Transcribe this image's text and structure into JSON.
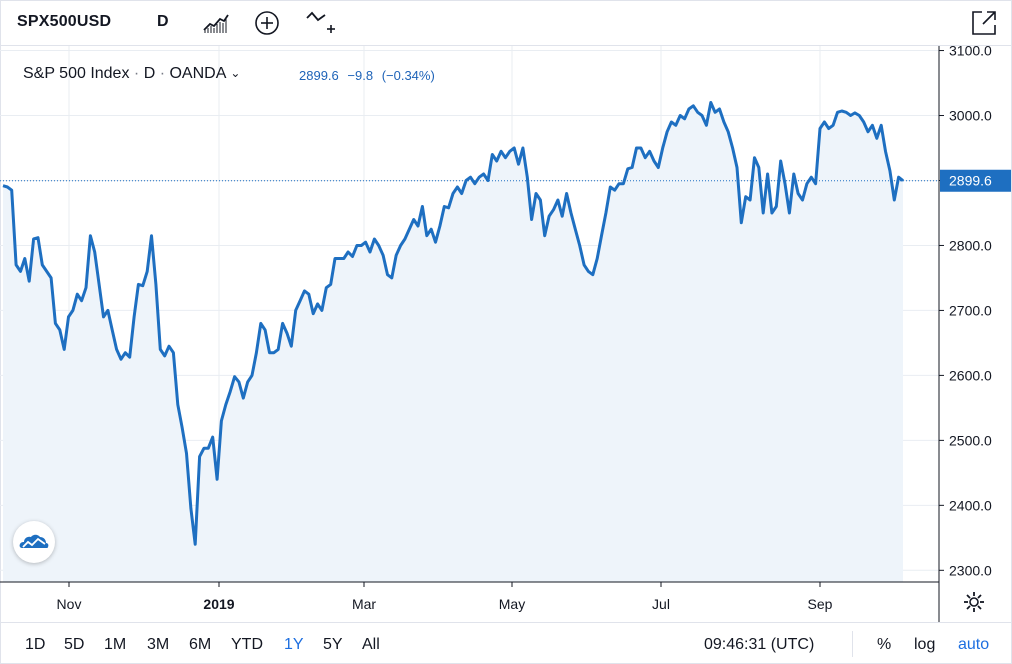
{
  "toolbar": {
    "symbol": "SPX500USD",
    "interval": "D",
    "icons": [
      "chart-style-icon",
      "compare-icon",
      "indicators-icon",
      "fullscreen-icon"
    ]
  },
  "legend": {
    "title": "S&P 500 Index",
    "sep": "·",
    "interval": "D",
    "source": "OANDA",
    "price": "2899.6",
    "change": "−9.8",
    "change_pct": "(−0.34%)"
  },
  "bottom": {
    "ranges": [
      "1D",
      "5D",
      "1M",
      "3M",
      "6M",
      "YTD",
      "1Y",
      "5Y",
      "All"
    ],
    "active_range": "1Y",
    "time": "09:46:31 (UTC)",
    "options": [
      "%",
      "log",
      "auto"
    ]
  },
  "colors": {
    "line": "#1e6fc1",
    "area": "#eef4fa",
    "grid": "#e9edf2",
    "price_label_bg": "#1e6fc1"
  },
  "chart_data": {
    "type": "area",
    "x_ticks": [
      "Nov",
      "2019",
      "Mar",
      "May",
      "Jul",
      "Sep"
    ],
    "y_ticks": [
      3100.0,
      3000.0,
      2900.0,
      2800.0,
      2700.0,
      2600.0,
      2500.0,
      2400.0,
      2300.0
    ],
    "ylim": [
      2282,
      3107
    ],
    "last_price": 2899.6,
    "last_price_label": "2899.6",
    "grid": true,
    "series": [
      {
        "values": [
          2892,
          2890,
          2885,
          2770,
          2760,
          2780,
          2745,
          2810,
          2812,
          2770,
          2760,
          2750,
          2680,
          2670,
          2640,
          2690,
          2700,
          2725,
          2715,
          2735,
          2815,
          2790,
          2740,
          2690,
          2700,
          2670,
          2640,
          2625,
          2635,
          2628,
          2690,
          2740,
          2738,
          2760,
          2815,
          2740,
          2640,
          2630,
          2645,
          2635,
          2555,
          2520,
          2480,
          2395,
          2340,
          2475,
          2488,
          2488,
          2505,
          2440,
          2530,
          2555,
          2575,
          2598,
          2590,
          2565,
          2590,
          2600,
          2635,
          2680,
          2670,
          2635,
          2635,
          2640,
          2680,
          2665,
          2645,
          2700,
          2715,
          2730,
          2725,
          2695,
          2710,
          2700,
          2735,
          2740,
          2780,
          2780,
          2780,
          2790,
          2783,
          2800,
          2800,
          2805,
          2790,
          2810,
          2800,
          2785,
          2755,
          2750,
          2785,
          2800,
          2810,
          2825,
          2840,
          2830,
          2860,
          2815,
          2825,
          2805,
          2830,
          2860,
          2858,
          2880,
          2890,
          2880,
          2900,
          2905,
          2895,
          2905,
          2910,
          2900,
          2940,
          2930,
          2945,
          2935,
          2945,
          2950,
          2925,
          2950,
          2905,
          2840,
          2880,
          2870,
          2815,
          2845,
          2855,
          2870,
          2845,
          2880,
          2850,
          2825,
          2800,
          2770,
          2760,
          2755,
          2780,
          2815,
          2850,
          2890,
          2885,
          2895,
          2895,
          2918,
          2920,
          2950,
          2950,
          2935,
          2945,
          2930,
          2920,
          2950,
          2975,
          2990,
          2985,
          3000,
          2995,
          3010,
          3015,
          3005,
          3000,
          2985,
          3020,
          3005,
          3010,
          2990,
          2975,
          2950,
          2920,
          2835,
          2875,
          2870,
          2935,
          2920,
          2850,
          2910,
          2850,
          2860,
          2930,
          2895,
          2850,
          2910,
          2880,
          2870,
          2895,
          2905,
          2895,
          2980,
          2990,
          2980,
          2985,
          3005,
          3007,
          3005,
          3000,
          3004,
          3000,
          2990,
          2975,
          2985,
          2965,
          2985,
          2945,
          2915,
          2870,
          2905,
          2899.6
        ]
      }
    ]
  }
}
